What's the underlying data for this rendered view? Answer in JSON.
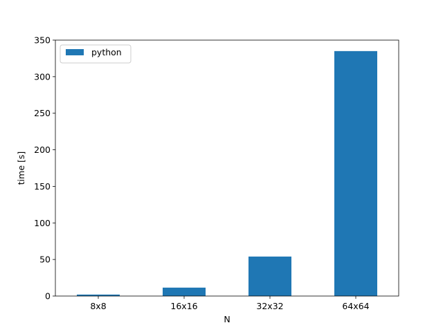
{
  "chart_data": {
    "type": "bar",
    "title": "",
    "xlabel": "N",
    "ylabel": "time [s]",
    "categories": [
      "8x8",
      "16x16",
      "32x32",
      "64x64"
    ],
    "series": [
      {
        "name": "python",
        "values": [
          2,
          11.5,
          54,
          335
        ],
        "color": "#1f77b4"
      }
    ],
    "ylim": [
      0,
      350
    ],
    "yticks": [
      0,
      50,
      100,
      150,
      200,
      250,
      300,
      350
    ],
    "grid": false,
    "legend": "top-left"
  }
}
